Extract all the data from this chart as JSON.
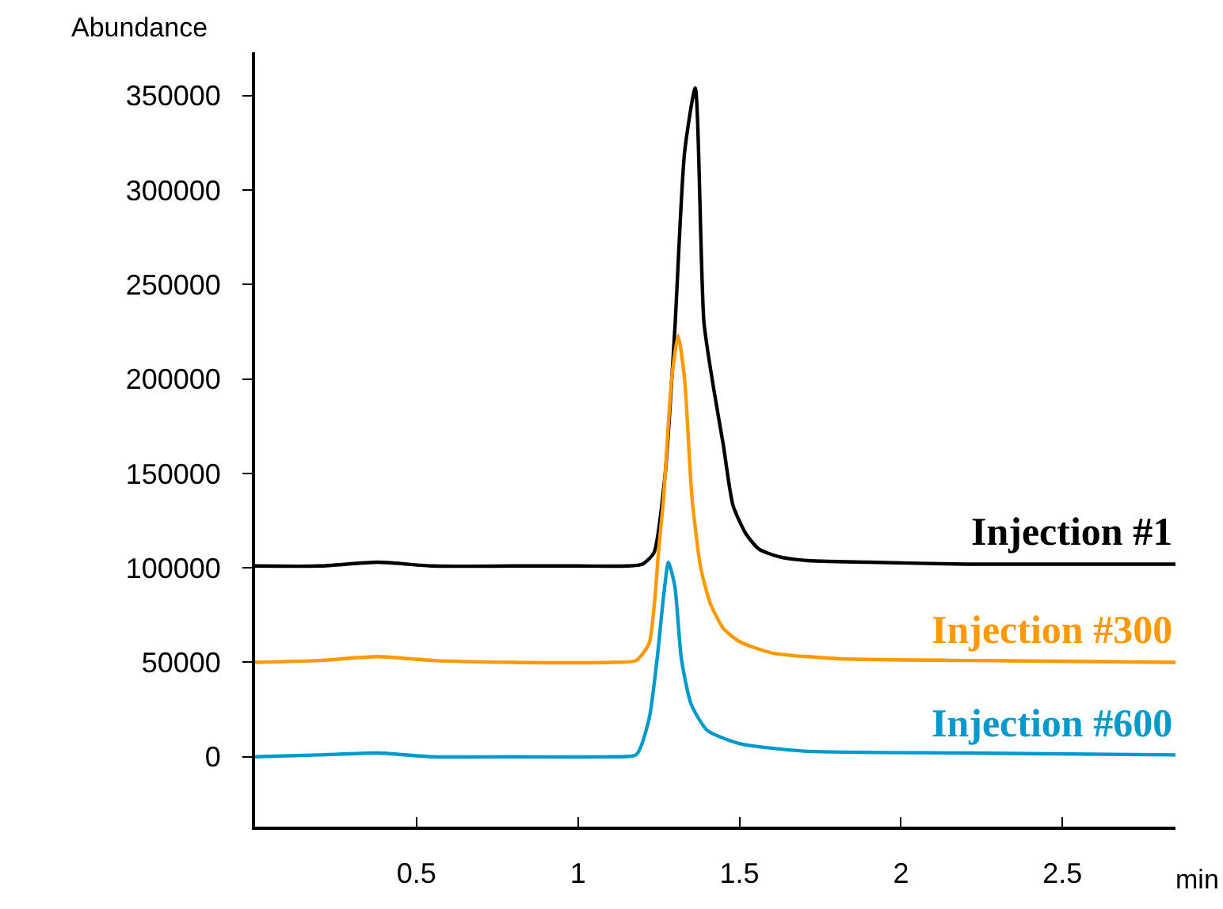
{
  "chart_data": {
    "type": "line",
    "xlabel": "min",
    "ylabel": "Abundance",
    "xlim": [
      0,
      2.85
    ],
    "xticks": [
      0.5,
      1,
      1.5,
      2,
      2.5
    ],
    "ylim": [
      -37000,
      373000
    ],
    "yticks": [
      0,
      50000,
      100000,
      150000,
      200000,
      250000,
      300000,
      350000
    ],
    "legend": false,
    "marker": "none",
    "line_style": "solid",
    "series": [
      {
        "name": "Injection #1",
        "color": "#000000",
        "x": [
          0,
          0.2,
          0.38,
          0.55,
          0.8,
          1.0,
          1.15,
          1.2,
          1.235,
          1.27,
          1.3,
          1.33,
          1.363,
          1.39,
          1.42,
          1.45,
          1.48,
          1.52,
          1.56,
          1.62,
          1.7,
          1.9,
          2.2,
          2.5,
          2.85
        ],
        "values": [
          101000,
          101000,
          103000,
          101000,
          101000,
          101000,
          101000,
          102000,
          108000,
          150000,
          227000,
          320000,
          354000,
          230000,
          195000,
          165000,
          133000,
          118000,
          110000,
          106000,
          104000,
          103000,
          102000,
          102000,
          102000
        ]
      },
      {
        "name": "Injection #300",
        "color": "#ff9900",
        "x": [
          0,
          0.2,
          0.38,
          0.55,
          0.8,
          1.1,
          1.18,
          1.22,
          1.25,
          1.265,
          1.29,
          1.31,
          1.33,
          1.353,
          1.38,
          1.41,
          1.45,
          1.5,
          1.6,
          1.8,
          2.2,
          2.85
        ],
        "values": [
          50000,
          51000,
          53000,
          51000,
          50000,
          50000,
          51000,
          60000,
          110000,
          137000,
          200000,
          223000,
          200000,
          137000,
          100000,
          81000,
          68000,
          61000,
          55000,
          52000,
          51000,
          50000
        ]
      },
      {
        "name": "Injection #600",
        "color": "#0099cc",
        "x": [
          0,
          0.2,
          0.38,
          0.55,
          0.8,
          1.1,
          1.18,
          1.22,
          1.245,
          1.265,
          1.28,
          1.3,
          1.32,
          1.35,
          1.4,
          1.5,
          1.7,
          2.2,
          2.85
        ],
        "values": [
          0,
          1000,
          2000,
          0,
          0,
          0,
          1000,
          20000,
          52000,
          85000,
          103000,
          90000,
          52000,
          28000,
          14000,
          7000,
          3000,
          2000,
          1000
        ]
      }
    ]
  }
}
